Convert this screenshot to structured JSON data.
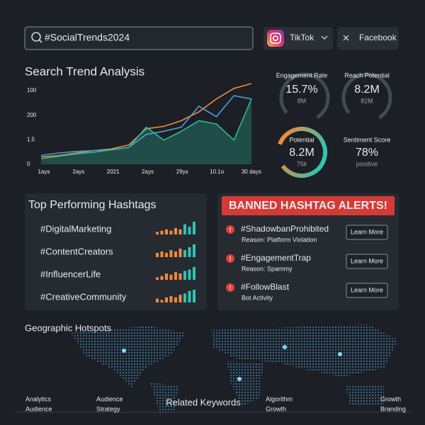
{
  "search": {
    "query": "#SocialTrends2024"
  },
  "filters": [
    {
      "label": "TikTok"
    },
    {
      "label": "Facebook"
    }
  ],
  "chart_data": {
    "type": "line",
    "title": "Search Trend Analysis",
    "y_labels": [
      "100",
      "200",
      "1.5",
      "0"
    ],
    "x_labels": [
      "1ays",
      "2ays",
      "2021",
      "2ays",
      "29ys",
      "10.1o",
      "30 days"
    ],
    "ylim": [
      0,
      100
    ],
    "series": [
      {
        "color": "#f08a3c",
        "values": [
          9,
          11,
          14,
          17,
          19,
          24,
          44,
          47,
          54,
          65,
          81,
          94,
          100
        ]
      },
      {
        "color": "#4a9fd8",
        "values": [
          11,
          14,
          16,
          17,
          18,
          21,
          37,
          41,
          46,
          72,
          59,
          85,
          81
        ]
      },
      {
        "color": "#2fb89a",
        "values": [
          7,
          10,
          13,
          15,
          18,
          21,
          46,
          30,
          41,
          54,
          50,
          30,
          81
        ],
        "area": true
      }
    ]
  },
  "metrics": [
    {
      "label": "Engagement Rate",
      "value": "15.7%",
      "sub": "8M"
    },
    {
      "label": "Reach Potential",
      "value": "8.2M",
      "sub": "82M"
    },
    {
      "label": "Potential",
      "value": "8.2M",
      "sub": "75k"
    },
    {
      "label": "Sentiment Score",
      "value": "78%",
      "sub": "positive"
    }
  ],
  "top_hashtags": {
    "title": "Top Performing Hashtags",
    "items": [
      {
        "tag": "#DigitalMarketing",
        "bars": [
          2,
          3,
          4,
          3,
          5,
          4,
          8,
          6,
          10
        ]
      },
      {
        "tag": "#ContentCreators",
        "bars": [
          3,
          4,
          3,
          5,
          4,
          6,
          5,
          7,
          9
        ]
      },
      {
        "tag": "#InfluencerLife",
        "bars": [
          2,
          3,
          5,
          4,
          6,
          5,
          7,
          8,
          10
        ]
      },
      {
        "tag": "#CreativeCommunity",
        "bars": [
          3,
          2,
          4,
          5,
          4,
          6,
          7,
          9,
          10
        ]
      }
    ]
  },
  "banned": {
    "title": "BANNED HASHTAG ALERTS!",
    "items": [
      {
        "tag": "#ShadowbanProhibited",
        "reason": "Reason: Platform Violation",
        "action": "Learn More"
      },
      {
        "tag": "#EngagementTrap",
        "reason": "Reason: Spammy",
        "action": "Learn More"
      },
      {
        "tag": "#FollowBlast",
        "reason": "Bot Activity",
        "action": "Learn More"
      }
    ]
  },
  "map": {
    "title": "Geographic Hotspots"
  },
  "keywords": {
    "title": "Related Keywords",
    "columns": [
      [
        "Analytics",
        "Audience"
      ],
      [
        "Audience",
        "Strategy"
      ],
      [
        "Algorithm",
        "Growth"
      ],
      [
        "Growth",
        "Branding"
      ]
    ]
  }
}
